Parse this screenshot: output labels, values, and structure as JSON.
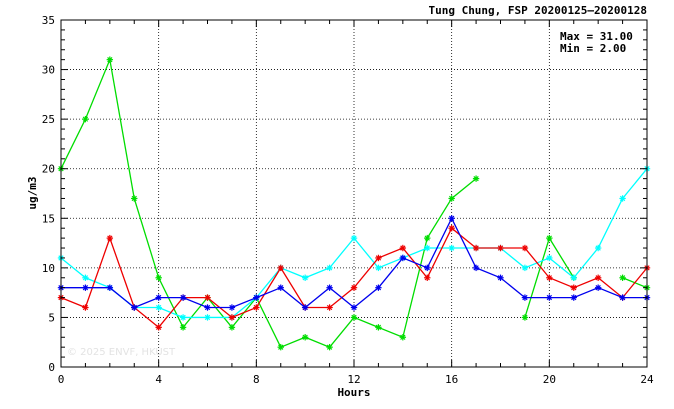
{
  "chart_data": {
    "type": "line",
    "title": "Tung Chung, FSP 20200125—20200128",
    "xlabel": "Hours",
    "ylabel": "ug/m3",
    "xlim": [
      0,
      24
    ],
    "ylim": [
      0,
      35
    ],
    "xticks": [
      "0",
      "4",
      "8",
      "12",
      "16",
      "20",
      "24"
    ],
    "yticks": [
      "0",
      "5",
      "10",
      "15",
      "20",
      "25",
      "30",
      "35"
    ],
    "grid": true,
    "stats": {
      "max": "Max = 31.00",
      "min": "Min =  2.00"
    },
    "watermark": "© 2025  ENVF, HKUST",
    "x": [
      0,
      1,
      2,
      3,
      4,
      5,
      6,
      7,
      8,
      9,
      10,
      11,
      12,
      13,
      14,
      15,
      16,
      17,
      18,
      19,
      20,
      21,
      22,
      23,
      24
    ],
    "series": [
      {
        "color": "#00dd00",
        "values": [
          20,
          25,
          31,
          17,
          9,
          4,
          7,
          4,
          7,
          2,
          3,
          2,
          5,
          4,
          3,
          13,
          17,
          19,
          null,
          5,
          13,
          9,
          null,
          9,
          8
        ]
      },
      {
        "color": "#00ffff",
        "values": [
          11,
          9,
          8,
          6,
          6,
          5,
          5,
          5,
          7,
          10,
          9,
          10,
          13,
          10,
          11,
          12,
          12,
          12,
          12,
          10,
          11,
          9,
          12,
          17,
          20
        ]
      },
      {
        "color": "#ee0000",
        "values": [
          7,
          6,
          13,
          6,
          4,
          7,
          7,
          5,
          6,
          10,
          6,
          6,
          8,
          11,
          12,
          9,
          14,
          12,
          12,
          12,
          9,
          8,
          9,
          7,
          10
        ]
      },
      {
        "color": "#0000ee",
        "values": [
          8,
          8,
          8,
          6,
          7,
          7,
          6,
          6,
          7,
          8,
          6,
          8,
          6,
          8,
          11,
          10,
          15,
          10,
          9,
          7,
          7,
          7,
          8,
          7,
          7
        ]
      }
    ]
  }
}
